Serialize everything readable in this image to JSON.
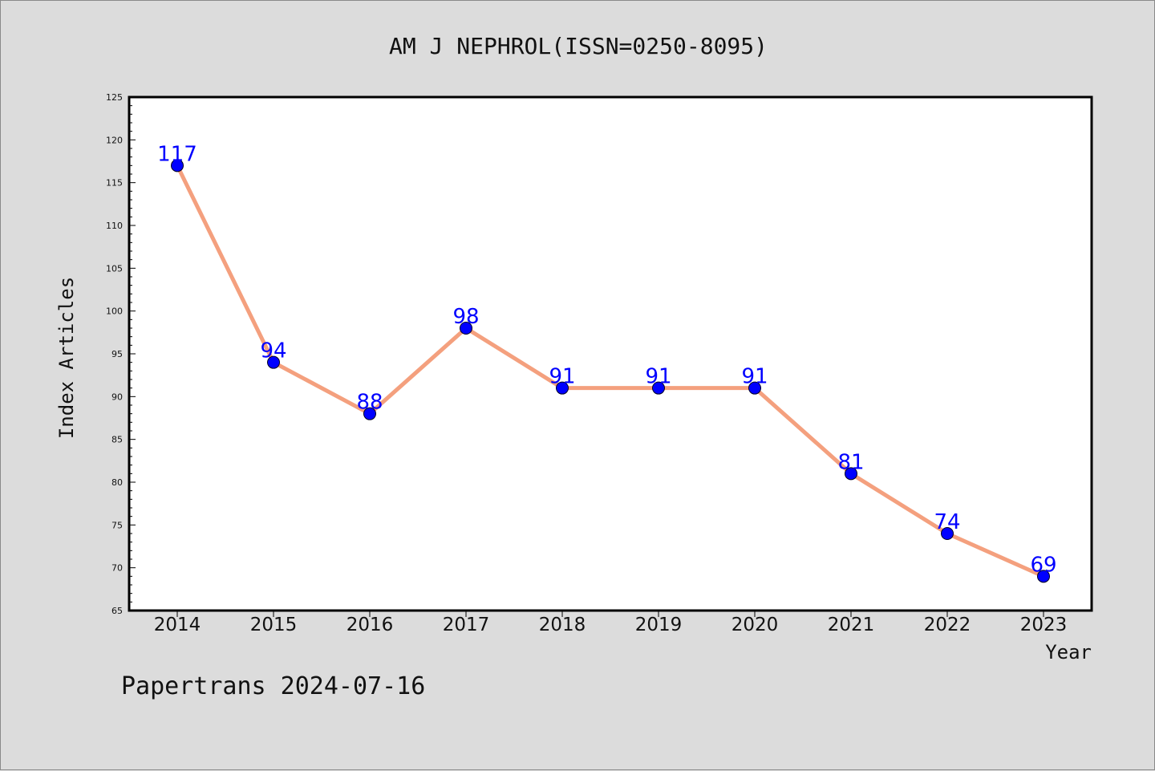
{
  "chart_data": {
    "type": "line",
    "title": "AM J NEPHROL(ISSN=0250-8095)",
    "xlabel": "Year",
    "ylabel": "Index Articles",
    "x": [
      "2014",
      "2015",
      "2016",
      "2017",
      "2018",
      "2019",
      "2020",
      "2021",
      "2022",
      "2023"
    ],
    "series": [
      {
        "values": [
          117,
          94,
          88,
          98,
          91,
          91,
          91,
          81,
          74,
          69
        ]
      }
    ],
    "ylim": [
      65,
      125
    ],
    "yticks": [
      65,
      70,
      75,
      80,
      85,
      90,
      95,
      100,
      105,
      110,
      115,
      120,
      125
    ],
    "grid": false,
    "line_color": "#f4a07e",
    "marker_color": "#0000ff",
    "label_color": "#0000ff",
    "background": "#dcdcdc",
    "plot_background": "#ffffff"
  },
  "footer": {
    "text": "Papertrans 2024-07-16"
  }
}
